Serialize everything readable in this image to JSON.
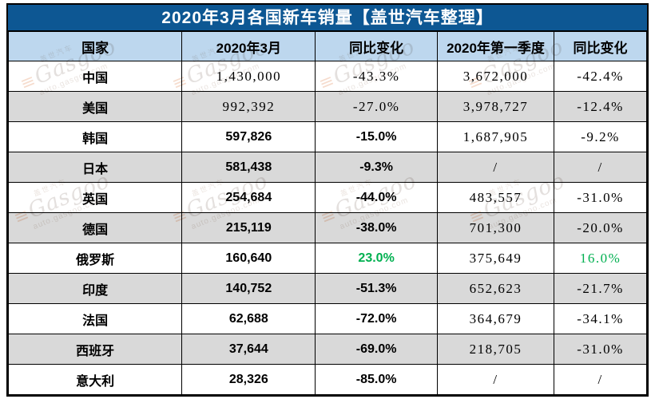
{
  "chart_data": {
    "type": "table",
    "title": "2020年3月各国新车销量【盖世汽车整理】",
    "columns": [
      "国家",
      "2020年3月",
      "同比变化",
      "2020年第一季度",
      "同比变化"
    ],
    "rows": [
      {
        "country": "中国",
        "march": "1,430,000",
        "march_yoy": "-43.3%",
        "q1": "3,672,000",
        "q1_yoy": "-42.4%",
        "num_style": "serif",
        "positive": false
      },
      {
        "country": "美国",
        "march": "992,392",
        "march_yoy": "-27.0%",
        "q1": "3,978,727",
        "q1_yoy": "-12.4%",
        "num_style": "serif",
        "positive": false
      },
      {
        "country": "韩国",
        "march": "597,826",
        "march_yoy": "-15.0%",
        "q1": "1,687,905",
        "q1_yoy": "-9.2%",
        "num_style": "sans",
        "positive": false
      },
      {
        "country": "日本",
        "march": "581,438",
        "march_yoy": "-9.3%",
        "q1": "/",
        "q1_yoy": "/",
        "num_style": "sans",
        "positive": false
      },
      {
        "country": "英国",
        "march": "254,684",
        "march_yoy": "-44.0%",
        "q1": "483,557",
        "q1_yoy": "-31.0%",
        "num_style": "sans",
        "positive": false
      },
      {
        "country": "德国",
        "march": "215,119",
        "march_yoy": "-38.0%",
        "q1": "701,300",
        "q1_yoy": "-20.0%",
        "num_style": "sans",
        "positive": false
      },
      {
        "country": "俄罗斯",
        "march": "160,640",
        "march_yoy": "23.0%",
        "q1": "375,649",
        "q1_yoy": "16.0%",
        "num_style": "sans",
        "positive": true
      },
      {
        "country": "印度",
        "march": "140,752",
        "march_yoy": "-51.3%",
        "q1": "652,623",
        "q1_yoy": "-21.7%",
        "num_style": "sans",
        "positive": false
      },
      {
        "country": "法国",
        "march": "62,688",
        "march_yoy": "-72.0%",
        "q1": "364,679",
        "q1_yoy": "-34.1%",
        "num_style": "sans",
        "positive": false
      },
      {
        "country": "西班牙",
        "march": "37,644",
        "march_yoy": "-69.0%",
        "q1": "218,705",
        "q1_yoy": "-31.0%",
        "num_style": "sans",
        "positive": false
      },
      {
        "country": "意大利",
        "march": "28,326",
        "march_yoy": "-85.0%",
        "q1": "/",
        "q1_yoy": "/",
        "num_style": "sans",
        "positive": false
      }
    ]
  },
  "colors": {
    "title_bg": "#0d5793",
    "header_bg": "#bdd7ee",
    "stripe_bg": "#d9d9d9",
    "positive_green": "#00b050"
  },
  "watermark": {
    "brand_cn": "盖世汽车",
    "logo_glyph": "≡",
    "brand": "Gasgoo",
    "domain": "auto.gasgoo.com"
  }
}
